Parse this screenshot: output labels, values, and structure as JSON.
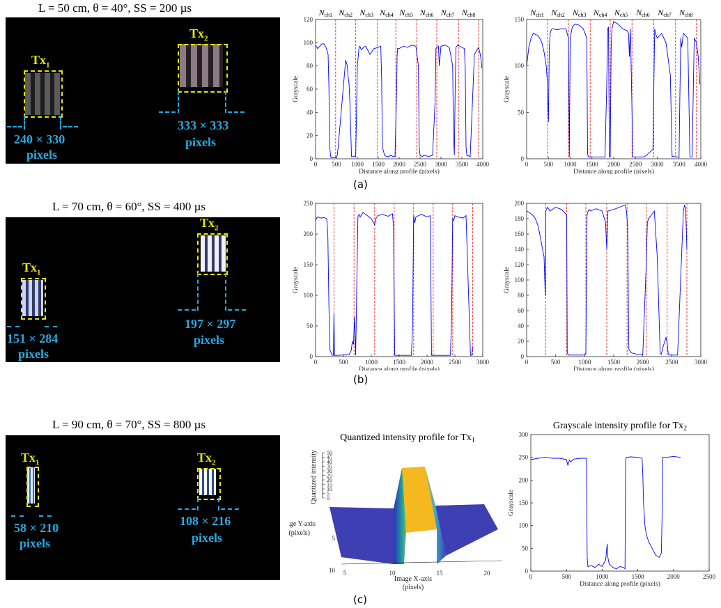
{
  "panel_captions": [
    "(a)",
    "(b)",
    "(c)"
  ],
  "rows": [
    {
      "title": "L = 50 cm, θ = 40°, SS = 200 µs",
      "tx1": {
        "label": "Tx",
        "sub": "1",
        "size": "240 × 330",
        "unit": "pixels"
      },
      "tx2": {
        "label": "Tx",
        "sub": "2",
        "size": "333 × 333",
        "unit": "pixels"
      }
    },
    {
      "title": "L = 70 cm, θ = 60°, SS = 400 µs",
      "tx1": {
        "label": "Tx",
        "sub": "1",
        "size": "151 × 284",
        "unit": "pixels"
      },
      "tx2": {
        "label": "Tx",
        "sub": "2",
        "size": "197 × 297",
        "unit": "pixels"
      }
    },
    {
      "title": "L = 90 cm, θ = 70°, SS = 800 µs",
      "tx1": {
        "label": "Tx",
        "sub": "1",
        "size": "58 × 210",
        "unit": "pixels"
      },
      "tx2": {
        "label": "Tx",
        "sub": "2",
        "size": "108 × 216",
        "unit": "pixels"
      }
    }
  ],
  "chart_data": [
    {
      "id": "a-left",
      "type": "line",
      "color": "#0000ff",
      "xlabel": "Distance along profile (pixels)",
      "ylabel": "Grayscale",
      "xlim": [
        0,
        4000
      ],
      "ylim": [
        0,
        120
      ],
      "xticks": [
        0,
        500,
        1000,
        1500,
        2000,
        2500,
        3000,
        3500,
        4000
      ],
      "yticks": [
        0,
        20,
        40,
        60,
        80,
        100,
        120
      ],
      "dividers": [
        480,
        960,
        1480,
        1920,
        2420,
        2900,
        3420,
        3900
      ],
      "channel_labels": [
        "N",
        "N",
        "N",
        "N",
        "N",
        "N",
        "N",
        "N"
      ],
      "channel_subs": [
        "ch1",
        "ch2",
        "ch3",
        "ch4",
        "ch5",
        "ch6",
        "ch7",
        "ch8"
      ],
      "x": [
        0,
        50,
        100,
        150,
        200,
        250,
        300,
        320,
        340,
        360,
        380,
        400,
        440,
        480,
        500,
        520,
        540,
        720,
        760,
        780,
        800,
        820,
        860,
        900,
        920,
        960,
        1000,
        1040,
        1060,
        1080,
        1100,
        1150,
        1200,
        1300,
        1400,
        1500,
        1560,
        1580,
        1600,
        1650,
        1700,
        1750,
        1800,
        1850,
        1900,
        1940,
        1950,
        1960,
        2000,
        2100,
        2200,
        2300,
        2400,
        2460,
        2480,
        2500,
        2550,
        2600,
        2700,
        2800,
        2860,
        2880,
        2900,
        2940,
        2960,
        3000,
        3100,
        3200,
        3280,
        3300,
        3320,
        3340,
        3360,
        3400,
        3500,
        3560,
        3580,
        3600,
        3620,
        3700,
        3800,
        3900,
        3940,
        3960,
        3980
      ],
      "y": [
        98,
        95,
        97,
        99,
        99,
        96,
        90,
        60,
        10,
        2,
        1,
        1,
        1,
        1,
        2,
        3,
        10,
        85,
        80,
        70,
        65,
        50,
        2,
        2,
        2,
        2,
        80,
        96,
        97,
        95,
        94,
        96,
        97,
        90,
        95,
        96,
        97,
        70,
        10,
        3,
        2,
        2,
        3,
        2,
        2,
        60,
        88,
        95,
        95,
        97,
        96,
        98,
        97,
        80,
        10,
        3,
        2,
        3,
        2,
        3,
        50,
        95,
        96,
        97,
        80,
        97,
        98,
        96,
        80,
        20,
        3,
        60,
        96,
        98,
        96,
        95,
        80,
        10,
        3,
        2,
        90,
        96,
        90,
        85,
        78
      ]
    },
    {
      "id": "a-right",
      "type": "line",
      "color": "#0000ff",
      "xlabel": "Distance along profile (pixels)",
      "ylabel": "Grayscale",
      "xlim": [
        0,
        4000
      ],
      "ylim": [
        0,
        150
      ],
      "xticks": [
        0,
        500,
        1000,
        1500,
        2000,
        2500,
        3000,
        3500,
        4000
      ],
      "yticks": [
        0,
        50,
        100,
        150
      ],
      "dividers": [
        480,
        960,
        1460,
        1920,
        2420,
        2920,
        3420,
        3900
      ],
      "channel_labels": [
        "N",
        "N",
        "N",
        "N",
        "N",
        "N",
        "N",
        "N"
      ],
      "channel_subs": [
        "ch1",
        "ch2",
        "ch3",
        "ch4",
        "ch5",
        "ch6",
        "ch7",
        "ch8"
      ],
      "x": [
        0,
        50,
        100,
        150,
        200,
        250,
        300,
        350,
        400,
        450,
        480,
        500,
        520,
        540,
        560,
        580,
        600,
        700,
        800,
        900,
        960,
        980,
        1000,
        1050,
        1100,
        1200,
        1300,
        1380,
        1400,
        1420,
        1600,
        1800,
        1840,
        1860,
        1880,
        1900,
        1920,
        1940,
        1960,
        2000,
        2100,
        2200,
        2300,
        2340,
        2360,
        2380,
        2400,
        2440,
        2480,
        2500,
        2700,
        2900,
        2940,
        2960,
        3000,
        3100,
        3200,
        3300,
        3340,
        3360,
        3400,
        3500,
        3520,
        3540,
        3560,
        3600,
        3700,
        3750,
        3800,
        3850,
        3900,
        3940,
        3980
      ],
      "y": [
        100,
        120,
        130,
        135,
        134,
        133,
        130,
        125,
        115,
        100,
        80,
        40,
        120,
        135,
        138,
        140,
        140,
        139,
        140,
        140,
        130,
        2,
        130,
        142,
        145,
        144,
        140,
        130,
        5,
        2,
        2,
        2,
        80,
        140,
        142,
        2,
        2,
        120,
        140,
        148,
        145,
        140,
        138,
        135,
        110,
        140,
        100,
        2,
        2,
        2,
        2,
        10,
        140,
        135,
        130,
        135,
        125,
        90,
        2,
        3,
        2,
        2,
        70,
        130,
        120,
        135,
        130,
        2,
        2,
        130,
        125,
        110,
        80
      ]
    },
    {
      "id": "b-left",
      "type": "line",
      "color": "#0000ff",
      "xlabel": "Distance along profile (pixels)",
      "ylabel": "Grayscale",
      "xlim": [
        0,
        3000
      ],
      "ylim": [
        0,
        250
      ],
      "xticks": [
        0,
        500,
        1000,
        1500,
        2000,
        2500,
        3000
      ],
      "yticks": [
        0,
        50,
        100,
        150,
        200,
        250
      ],
      "dividers": [
        330,
        690,
        1060,
        1410,
        1760,
        2110,
        2460,
        2820
      ],
      "x": [
        0,
        30,
        60,
        100,
        150,
        200,
        220,
        240,
        260,
        300,
        320,
        330,
        340,
        360,
        600,
        640,
        660,
        680,
        700,
        720,
        740,
        760,
        780,
        800,
        850,
        900,
        1000,
        1060,
        1080,
        1120,
        1200,
        1300,
        1380,
        1400,
        1420,
        1440,
        1700,
        1720,
        1740,
        1760,
        1780,
        1800,
        1900,
        2000,
        2060,
        2080,
        2100,
        2400,
        2420,
        2440,
        2460,
        2480,
        2500,
        2550,
        2650,
        2700,
        2780,
        2800,
        2820
      ],
      "y": [
        222,
        228,
        227,
        226,
        227,
        225,
        200,
        80,
        10,
        2,
        2,
        70,
        2,
        2,
        3,
        10,
        25,
        20,
        65,
        2,
        120,
        228,
        232,
        228,
        235,
        232,
        225,
        215,
        225,
        230,
        232,
        229,
        233,
        210,
        2,
        2,
        2,
        2,
        50,
        230,
        218,
        228,
        232,
        228,
        230,
        2,
        2,
        2,
        2,
        60,
        225,
        222,
        230,
        228,
        226,
        230,
        2,
        2,
        15
      ]
    },
    {
      "id": "b-right",
      "type": "line",
      "color": "#0000ff",
      "xlabel": "Distance along profile (pixels)",
      "ylabel": "Grayscale",
      "xlim": [
        0,
        3000
      ],
      "ylim": [
        0,
        200
      ],
      "xticks": [
        0,
        500,
        1000,
        1500,
        2000,
        2500,
        3000
      ],
      "yticks": [
        0,
        20,
        40,
        60,
        80,
        100,
        120,
        140,
        160,
        180,
        200
      ],
      "dividers": [
        330,
        690,
        1020,
        1380,
        1730,
        2060,
        2420,
        2760
      ],
      "x": [
        0,
        50,
        100,
        150,
        200,
        250,
        300,
        320,
        330,
        340,
        360,
        400,
        500,
        600,
        690,
        700,
        720,
        740,
        760,
        800,
        900,
        1000,
        1020,
        1040,
        1060,
        1080,
        1100,
        1200,
        1300,
        1360,
        1380,
        1400,
        1500,
        1600,
        1700,
        1720,
        1740,
        1760,
        1800,
        1900,
        2000,
        2060,
        2080,
        2100,
        2150,
        2200,
        2250,
        2300,
        2320,
        2340,
        2400,
        2420,
        2440,
        2460,
        2480,
        2500,
        2600,
        2700,
        2720,
        2740,
        2760
      ],
      "y": [
        190,
        188,
        185,
        180,
        170,
        150,
        130,
        80,
        190,
        192,
        195,
        190,
        195,
        192,
        185,
        5,
        2,
        2,
        2,
        2,
        2,
        2,
        5,
        185,
        190,
        192,
        190,
        193,
        190,
        175,
        140,
        190,
        192,
        195,
        198,
        190,
        170,
        10,
        5,
        3,
        2,
        120,
        175,
        180,
        185,
        190,
        130,
        4,
        3,
        10,
        25,
        18,
        3,
        2,
        2,
        2,
        2,
        190,
        198,
        192,
        140
      ]
    },
    {
      "id": "c-mid",
      "type": "surface",
      "title": "Quantized intensity profile for Tx",
      "title_sub": "1",
      "xlabel": "Image X-axis",
      "xlabel2": "(pixels)",
      "ylabel": "Image Y-axis",
      "ylabel2": "(pixels)",
      "zlabel": "Quantized intensity",
      "xticks": [
        5,
        10,
        15,
        20
      ],
      "yticks": [
        5,
        10
      ],
      "zticks": [
        0,
        5,
        10,
        15,
        20,
        25,
        30,
        35,
        40,
        45,
        50
      ],
      "zlim": [
        0,
        50
      ],
      "plateau_value": 50
    },
    {
      "id": "c-right",
      "type": "line",
      "color": "#0000ff",
      "title": "Grayscale intensity profile for Tx",
      "title_sub": "2",
      "xlabel": "Distance along profile (pixels)",
      "ylabel": "Grayscale",
      "xlim": [
        0,
        2500
      ],
      "ylim": [
        0,
        300
      ],
      "xticks": [
        0,
        500,
        1000,
        1500,
        2000,
        2500
      ],
      "yticks": [
        0,
        50,
        100,
        150,
        200,
        250,
        300
      ],
      "dividers": [],
      "x": [
        0,
        100,
        200,
        300,
        400,
        500,
        520,
        540,
        560,
        600,
        700,
        780,
        790,
        800,
        850,
        900,
        950,
        1000,
        1050,
        1070,
        1080,
        1100,
        1150,
        1200,
        1250,
        1300,
        1320,
        1330,
        1340,
        1400,
        1500,
        1560,
        1570,
        1580,
        1600,
        1620,
        1650,
        1700,
        1750,
        1800,
        1830,
        1840,
        1850,
        1900,
        2000,
        2100
      ],
      "y": [
        245,
        248,
        250,
        248,
        248,
        245,
        232,
        244,
        240,
        246,
        248,
        248,
        30,
        10,
        12,
        8,
        15,
        10,
        25,
        60,
        30,
        15,
        8,
        5,
        10,
        8,
        5,
        245,
        250,
        251,
        250,
        248,
        210,
        150,
        100,
        80,
        65,
        50,
        35,
        30,
        40,
        120,
        250,
        250,
        252,
        250
      ]
    }
  ]
}
